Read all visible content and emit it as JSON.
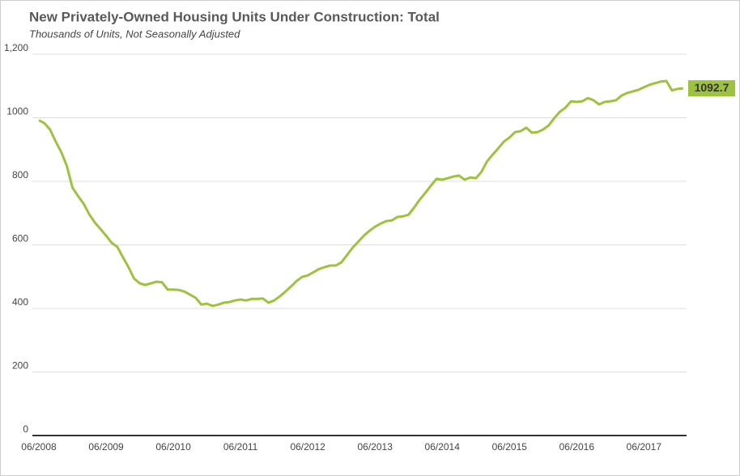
{
  "chart_data": {
    "type": "line",
    "title": "New Privately-Owned Housing Units Under Construction: Total",
    "subtitle": "Thousands of Units, Not Seasonally Adjusted",
    "x": [
      "06/2008",
      "07/2008",
      "08/2008",
      "09/2008",
      "10/2008",
      "11/2008",
      "12/2008",
      "01/2009",
      "02/2009",
      "03/2009",
      "04/2009",
      "05/2009",
      "06/2009",
      "07/2009",
      "08/2009",
      "09/2009",
      "10/2009",
      "11/2009",
      "12/2009",
      "01/2010",
      "02/2010",
      "03/2010",
      "04/2010",
      "05/2010",
      "06/2010",
      "07/2010",
      "08/2010",
      "09/2010",
      "10/2010",
      "11/2010",
      "12/2010",
      "01/2011",
      "02/2011",
      "03/2011",
      "04/2011",
      "05/2011",
      "06/2011",
      "07/2011",
      "08/2011",
      "09/2011",
      "10/2011",
      "11/2011",
      "12/2011",
      "01/2012",
      "02/2012",
      "03/2012",
      "04/2012",
      "05/2012",
      "06/2012",
      "07/2012",
      "08/2012",
      "09/2012",
      "10/2012",
      "11/2012",
      "12/2012",
      "01/2013",
      "02/2013",
      "03/2013",
      "04/2013",
      "05/2013",
      "06/2013",
      "07/2013",
      "08/2013",
      "09/2013",
      "10/2013",
      "11/2013",
      "12/2013",
      "01/2014",
      "02/2014",
      "03/2014",
      "04/2014",
      "05/2014",
      "06/2014",
      "07/2014",
      "08/2014",
      "09/2014",
      "10/2014",
      "11/2014",
      "12/2014",
      "01/2015",
      "02/2015",
      "03/2015",
      "04/2015",
      "05/2015",
      "06/2015",
      "07/2015",
      "08/2015",
      "09/2015",
      "10/2015",
      "11/2015",
      "12/2015",
      "01/2016",
      "02/2016",
      "03/2016",
      "04/2016",
      "05/2016",
      "06/2016",
      "07/2016",
      "08/2016",
      "09/2016",
      "10/2016",
      "11/2016",
      "12/2016",
      "01/2017",
      "02/2017",
      "03/2017",
      "04/2017",
      "05/2017",
      "06/2017",
      "07/2017",
      "08/2017",
      "09/2017",
      "10/2017",
      "11/2017",
      "12/2017",
      "01/2018"
    ],
    "series": [
      {
        "name": "Total",
        "color": "#9dc23f",
        "values": [
          992,
          983,
          963,
          925,
          892,
          848,
          780,
          754,
          729,
          696,
          670,
          650,
          629,
          606,
          594,
          561,
          530,
          494,
          479,
          474,
          479,
          484,
          482,
          459,
          459,
          458,
          453,
          443,
          433,
          412,
          415,
          408,
          412,
          418,
          420,
          425,
          428,
          425,
          430,
          430,
          431,
          418,
          425,
          438,
          453,
          469,
          486,
          499,
          504,
          514,
          524,
          530,
          535,
          535,
          545,
          568,
          591,
          610,
          629,
          644,
          657,
          667,
          675,
          677,
          688,
          690,
          695,
          718,
          743,
          764,
          787,
          808,
          805,
          810,
          815,
          818,
          805,
          812,
          810,
          830,
          863,
          884,
          904,
          925,
          938,
          955,
          958,
          969,
          953,
          955,
          963,
          976,
          999,
          1019,
          1032,
          1052,
          1050,
          1052,
          1062,
          1055,
          1042,
          1050,
          1052,
          1055,
          1070,
          1078,
          1083,
          1088,
          1096,
          1104,
          1109,
          1114,
          1116,
          1086,
          1091,
          1092.7
        ]
      }
    ],
    "xticks": [
      "06/2008",
      "06/2009",
      "06/2010",
      "06/2011",
      "06/2012",
      "06/2013",
      "06/2014",
      "06/2015",
      "06/2016",
      "06/2017"
    ],
    "ylim": [
      0,
      1200
    ],
    "yticks": [
      0,
      200,
      400,
      600,
      800,
      1000,
      {
        "value": 1200,
        "label": "1,200"
      }
    ],
    "grid": true
  }
}
